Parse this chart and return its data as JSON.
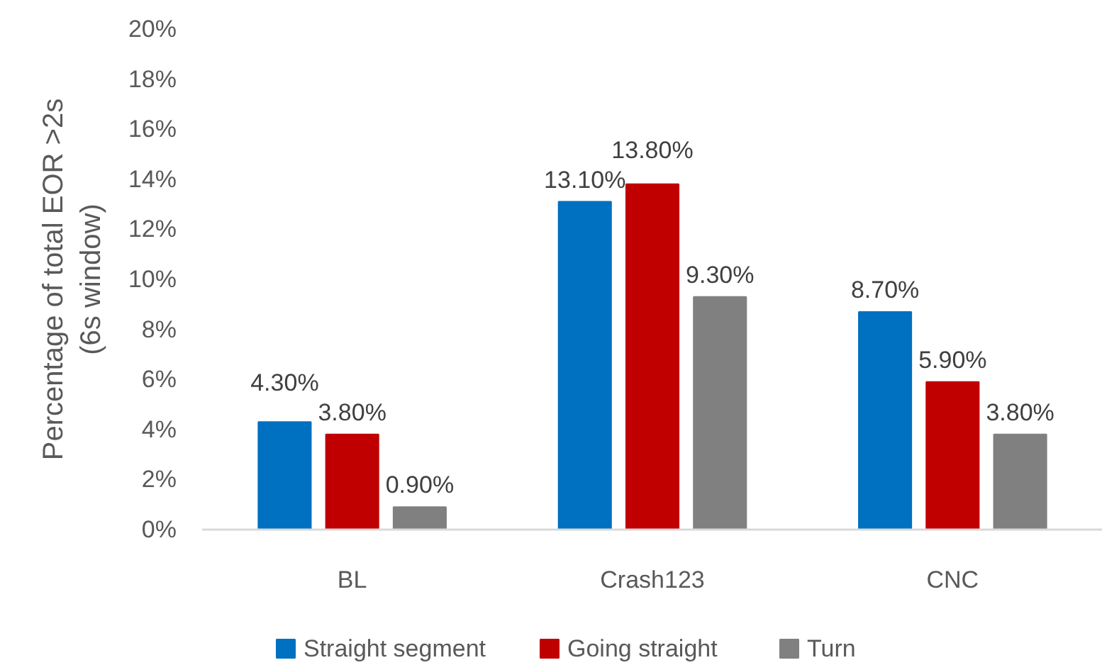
{
  "chart_data": {
    "type": "bar",
    "ylabel": "Percentage of total EOR >2s (6s window)",
    "categories": [
      "BL",
      "Crash123",
      "CNC"
    ],
    "series": [
      {
        "name": "Straight segment",
        "color": "#0070c0",
        "values": [
          4.3,
          13.1,
          8.7
        ],
        "value_labels": [
          "4.30%",
          "13.10%",
          "8.70%"
        ]
      },
      {
        "name": "Going straight",
        "color": "#c00000",
        "values": [
          3.8,
          13.8,
          5.9
        ],
        "value_labels": [
          "3.80%",
          "13.80%",
          "5.90%"
        ]
      },
      {
        "name": "Turn",
        "color": "#808080",
        "values": [
          0.9,
          9.3,
          3.8
        ],
        "value_labels": [
          "0.90%",
          "9.30%",
          "3.80%"
        ]
      }
    ],
    "ylim": [
      0,
      20
    ],
    "yticks": [
      {
        "value": 0,
        "label": "0%"
      },
      {
        "value": 2,
        "label": "2%"
      },
      {
        "value": 4,
        "label": "4%"
      },
      {
        "value": 6,
        "label": "6%"
      },
      {
        "value": 8,
        "label": "8%"
      },
      {
        "value": 10,
        "label": "10%"
      },
      {
        "value": 12,
        "label": "12%"
      },
      {
        "value": 14,
        "label": "14%"
      },
      {
        "value": 16,
        "label": "16%"
      },
      {
        "value": 18,
        "label": "18%"
      },
      {
        "value": 20,
        "label": "20%"
      }
    ],
    "legend": "bottom"
  }
}
